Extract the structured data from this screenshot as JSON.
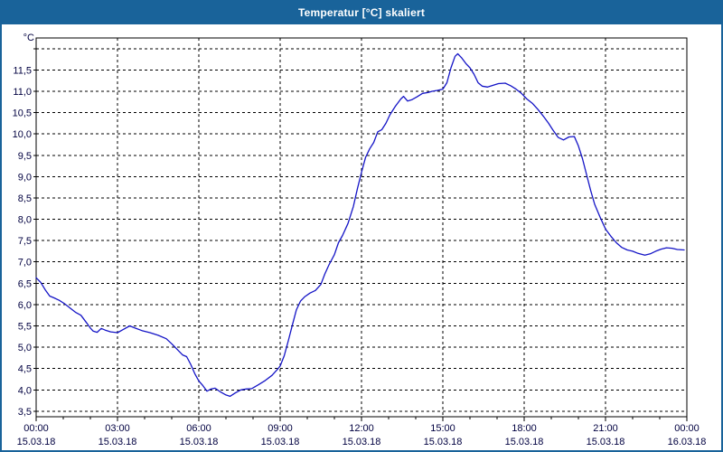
{
  "window": {
    "title": "Temperatur [°C] skaliert"
  },
  "colors": {
    "titlebar": "#19639A",
    "window_border": "#19639A",
    "content_bg": "#FFFFFF",
    "plot_bg": "#FFFFFF",
    "grid": "#000000",
    "axis": "#000000",
    "tick_text": "#000040",
    "line": "#1414C6"
  },
  "chart_data": {
    "type": "line",
    "title": "Temperatur [°C] skaliert",
    "ylabel": "°C",
    "xlabel": "",
    "grid": "dashed",
    "legend": "none",
    "x_range_hours": [
      0,
      24
    ],
    "ylim": [
      3.37,
      12.25
    ],
    "y_grid_min": 3.5,
    "y_grid_max": 12.0,
    "y_grid_step": 0.5,
    "y_ticks": [
      {
        "value": 3.5,
        "label": "3,5"
      },
      {
        "value": 4.0,
        "label": "4,0"
      },
      {
        "value": 4.5,
        "label": "4,5"
      },
      {
        "value": 5.0,
        "label": "5,0"
      },
      {
        "value": 5.5,
        "label": "5,5"
      },
      {
        "value": 6.0,
        "label": "6,0"
      },
      {
        "value": 6.5,
        "label": "6,5"
      },
      {
        "value": 7.0,
        "label": "7,0"
      },
      {
        "value": 7.5,
        "label": "7,5"
      },
      {
        "value": 8.0,
        "label": "8,0"
      },
      {
        "value": 8.5,
        "label": "8,5"
      },
      {
        "value": 9.0,
        "label": "9,0"
      },
      {
        "value": 9.5,
        "label": "9,5"
      },
      {
        "value": 10.0,
        "label": "10,0"
      },
      {
        "value": 10.5,
        "label": "10,5"
      },
      {
        "value": 11.0,
        "label": "11,0"
      },
      {
        "value": 11.5,
        "label": "11,5"
      }
    ],
    "x_ticks": [
      {
        "hour": 0,
        "time": "00:00",
        "date": "15.03.18"
      },
      {
        "hour": 3,
        "time": "03:00",
        "date": "15.03.18"
      },
      {
        "hour": 6,
        "time": "06:00",
        "date": "15.03.18"
      },
      {
        "hour": 9,
        "time": "09:00",
        "date": "15.03.18"
      },
      {
        "hour": 12,
        "time": "12:00",
        "date": "15.03.18"
      },
      {
        "hour": 15,
        "time": "15:00",
        "date": "15.03.18"
      },
      {
        "hour": 18,
        "time": "18:00",
        "date": "15.03.18"
      },
      {
        "hour": 21,
        "time": "21:00",
        "date": "15.03.18"
      },
      {
        "hour": 24,
        "time": "00:00",
        "date": "16.03.18"
      }
    ],
    "x_minor_tick_every_hours": 1,
    "series": [
      {
        "name": "Temperatur",
        "unit": "°C",
        "points": [
          [
            0,
            6.63
          ],
          [
            0.17,
            6.52
          ],
          [
            0.35,
            6.33
          ],
          [
            0.5,
            6.2
          ],
          [
            0.65,
            6.16
          ],
          [
            0.85,
            6.1
          ],
          [
            1.05,
            6.02
          ],
          [
            1.25,
            5.92
          ],
          [
            1.45,
            5.82
          ],
          [
            1.65,
            5.75
          ],
          [
            1.85,
            5.58
          ],
          [
            2.0,
            5.45
          ],
          [
            2.1,
            5.38
          ],
          [
            2.25,
            5.35
          ],
          [
            2.4,
            5.44
          ],
          [
            2.55,
            5.4
          ],
          [
            2.75,
            5.36
          ],
          [
            3.0,
            5.34
          ],
          [
            3.2,
            5.41
          ],
          [
            3.45,
            5.5
          ],
          [
            3.65,
            5.45
          ],
          [
            3.9,
            5.39
          ],
          [
            4.2,
            5.34
          ],
          [
            4.5,
            5.28
          ],
          [
            4.8,
            5.2
          ],
          [
            5.0,
            5.08
          ],
          [
            5.2,
            4.95
          ],
          [
            5.4,
            4.82
          ],
          [
            5.55,
            4.78
          ],
          [
            5.7,
            4.6
          ],
          [
            5.85,
            4.38
          ],
          [
            6.0,
            4.21
          ],
          [
            6.15,
            4.1
          ],
          [
            6.3,
            3.97
          ],
          [
            6.45,
            4.02
          ],
          [
            6.6,
            4.04
          ],
          [
            6.8,
            3.95
          ],
          [
            7.0,
            3.88
          ],
          [
            7.15,
            3.85
          ],
          [
            7.35,
            3.93
          ],
          [
            7.55,
            4.0
          ],
          [
            7.75,
            4.02
          ],
          [
            7.95,
            4.03
          ],
          [
            8.2,
            4.12
          ],
          [
            8.45,
            4.22
          ],
          [
            8.7,
            4.34
          ],
          [
            8.9,
            4.48
          ],
          [
            9.0,
            4.56
          ],
          [
            9.15,
            4.8
          ],
          [
            9.3,
            5.15
          ],
          [
            9.45,
            5.52
          ],
          [
            9.6,
            5.88
          ],
          [
            9.75,
            6.08
          ],
          [
            9.9,
            6.18
          ],
          [
            10.1,
            6.27
          ],
          [
            10.3,
            6.33
          ],
          [
            10.5,
            6.47
          ],
          [
            10.65,
            6.72
          ],
          [
            10.8,
            6.93
          ],
          [
            11.0,
            7.17
          ],
          [
            11.15,
            7.45
          ],
          [
            11.3,
            7.62
          ],
          [
            11.5,
            7.9
          ],
          [
            11.7,
            8.3
          ],
          [
            11.85,
            8.72
          ],
          [
            12.0,
            9.1
          ],
          [
            12.15,
            9.45
          ],
          [
            12.3,
            9.65
          ],
          [
            12.45,
            9.8
          ],
          [
            12.6,
            10.05
          ],
          [
            12.75,
            10.1
          ],
          [
            12.9,
            10.25
          ],
          [
            13.05,
            10.45
          ],
          [
            13.25,
            10.65
          ],
          [
            13.45,
            10.82
          ],
          [
            13.55,
            10.88
          ],
          [
            13.7,
            10.77
          ],
          [
            13.85,
            10.8
          ],
          [
            14.05,
            10.87
          ],
          [
            14.25,
            10.95
          ],
          [
            14.45,
            10.97
          ],
          [
            14.6,
            11.0
          ],
          [
            14.8,
            11.02
          ],
          [
            15.0,
            11.05
          ],
          [
            15.15,
            11.2
          ],
          [
            15.3,
            11.55
          ],
          [
            15.45,
            11.82
          ],
          [
            15.55,
            11.88
          ],
          [
            15.7,
            11.78
          ],
          [
            15.85,
            11.65
          ],
          [
            16.0,
            11.55
          ],
          [
            16.15,
            11.4
          ],
          [
            16.3,
            11.2
          ],
          [
            16.45,
            11.12
          ],
          [
            16.65,
            11.1
          ],
          [
            16.85,
            11.14
          ],
          [
            17.05,
            11.18
          ],
          [
            17.3,
            11.19
          ],
          [
            17.5,
            11.13
          ],
          [
            17.7,
            11.05
          ],
          [
            17.9,
            10.95
          ],
          [
            18.1,
            10.82
          ],
          [
            18.3,
            10.72
          ],
          [
            18.5,
            10.58
          ],
          [
            18.7,
            10.42
          ],
          [
            18.9,
            10.25
          ],
          [
            19.05,
            10.1
          ],
          [
            19.25,
            9.92
          ],
          [
            19.45,
            9.86
          ],
          [
            19.65,
            9.93
          ],
          [
            19.85,
            9.94
          ],
          [
            20.0,
            9.72
          ],
          [
            20.15,
            9.42
          ],
          [
            20.3,
            9.05
          ],
          [
            20.45,
            8.68
          ],
          [
            20.6,
            8.35
          ],
          [
            20.8,
            8.05
          ],
          [
            21.0,
            7.77
          ],
          [
            21.2,
            7.6
          ],
          [
            21.4,
            7.45
          ],
          [
            21.6,
            7.34
          ],
          [
            21.8,
            7.28
          ],
          [
            22.0,
            7.25
          ],
          [
            22.2,
            7.2
          ],
          [
            22.45,
            7.16
          ],
          [
            22.65,
            7.19
          ],
          [
            22.85,
            7.25
          ],
          [
            23.05,
            7.3
          ],
          [
            23.25,
            7.33
          ],
          [
            23.45,
            7.32
          ],
          [
            23.65,
            7.29
          ],
          [
            23.9,
            7.28
          ]
        ]
      }
    ]
  }
}
